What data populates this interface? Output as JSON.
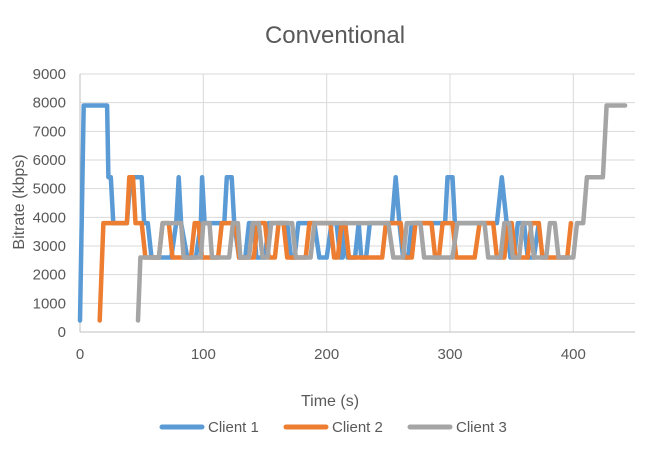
{
  "chart_data": {
    "type": "line",
    "title": "Conventional",
    "xlabel": "Time (s)",
    "ylabel": "Bitrate (kbps)",
    "xlim": [
      0,
      450
    ],
    "ylim": [
      0,
      9000
    ],
    "x_ticks": [
      0,
      100,
      200,
      300,
      400
    ],
    "y_ticks": [
      0,
      1000,
      2000,
      3000,
      4000,
      5000,
      6000,
      7000,
      8000,
      9000
    ],
    "grid": true,
    "legend_position": "bottom",
    "series": [
      {
        "name": "Client 1",
        "color": "#5B9BD5",
        "points": [
          [
            0,
            400
          ],
          [
            3,
            7900
          ],
          [
            22,
            7900
          ],
          [
            23,
            5400
          ],
          [
            25,
            5400
          ],
          [
            27,
            3800
          ],
          [
            38,
            3800
          ],
          [
            41,
            5400
          ],
          [
            50,
            5400
          ],
          [
            52,
            3800
          ],
          [
            55,
            3800
          ],
          [
            58,
            2600
          ],
          [
            74,
            2600
          ],
          [
            78,
            3800
          ],
          [
            80,
            5400
          ],
          [
            82,
            3800
          ],
          [
            87,
            2600
          ],
          [
            94,
            2600
          ],
          [
            98,
            3800
          ],
          [
            99,
            5400
          ],
          [
            101,
            3800
          ],
          [
            117,
            3800
          ],
          [
            119,
            5400
          ],
          [
            123,
            5400
          ],
          [
            125,
            3800
          ],
          [
            129,
            2600
          ],
          [
            134,
            2600
          ],
          [
            137,
            3800
          ],
          [
            141,
            3800
          ],
          [
            143,
            2600
          ],
          [
            150,
            2600
          ],
          [
            153,
            3800
          ],
          [
            168,
            3800
          ],
          [
            171,
            2600
          ],
          [
            174,
            2600
          ],
          [
            177,
            3800
          ],
          [
            190,
            3800
          ],
          [
            194,
            2600
          ],
          [
            200,
            2600
          ],
          [
            204,
            3800
          ],
          [
            208,
            3800
          ],
          [
            211,
            2600
          ],
          [
            213,
            2600
          ],
          [
            215,
            3800
          ],
          [
            217,
            2600
          ],
          [
            223,
            2600
          ],
          [
            226,
            3800
          ],
          [
            228,
            2600
          ],
          [
            232,
            2600
          ],
          [
            235,
            3800
          ],
          [
            253,
            3800
          ],
          [
            256,
            5400
          ],
          [
            259,
            3800
          ],
          [
            262,
            2600
          ],
          [
            266,
            2600
          ],
          [
            269,
            3800
          ],
          [
            296,
            3800
          ],
          [
            298,
            5400
          ],
          [
            302,
            5400
          ],
          [
            304,
            3800
          ],
          [
            338,
            3800
          ],
          [
            342,
            5400
          ],
          [
            346,
            3800
          ],
          [
            349,
            2600
          ],
          [
            352,
            2600
          ],
          [
            355,
            3800
          ],
          [
            360,
            3800
          ],
          [
            363,
            2600
          ],
          [
            368,
            2600
          ],
          [
            372,
            3800
          ]
        ]
      },
      {
        "name": "Client 2",
        "color": "#ED7D31",
        "points": [
          [
            16,
            400
          ],
          [
            19,
            3800
          ],
          [
            38,
            3800
          ],
          [
            40,
            5400
          ],
          [
            43,
            5400
          ],
          [
            45,
            3800
          ],
          [
            50,
            3800
          ],
          [
            53,
            2600
          ],
          [
            64,
            2600
          ],
          [
            67,
            3800
          ],
          [
            72,
            3800
          ],
          [
            75,
            2600
          ],
          [
            90,
            2600
          ],
          [
            93,
            3800
          ],
          [
            96,
            3800
          ],
          [
            99,
            2600
          ],
          [
            112,
            2600
          ],
          [
            115,
            3800
          ],
          [
            126,
            3800
          ],
          [
            129,
            2600
          ],
          [
            141,
            2600
          ],
          [
            144,
            3800
          ],
          [
            150,
            3800
          ],
          [
            153,
            2600
          ],
          [
            158,
            2600
          ],
          [
            161,
            3800
          ],
          [
            165,
            3800
          ],
          [
            168,
            2600
          ],
          [
            183,
            2600
          ],
          [
            186,
            3800
          ],
          [
            203,
            3800
          ],
          [
            206,
            2600
          ],
          [
            209,
            2600
          ],
          [
            212,
            3800
          ],
          [
            215,
            3800
          ],
          [
            218,
            2600
          ],
          [
            245,
            2600
          ],
          [
            248,
            3800
          ],
          [
            260,
            3800
          ],
          [
            263,
            2600
          ],
          [
            269,
            2600
          ],
          [
            272,
            3800
          ],
          [
            285,
            3800
          ],
          [
            288,
            2600
          ],
          [
            291,
            2600
          ],
          [
            294,
            3800
          ],
          [
            302,
            3800
          ],
          [
            305,
            2600
          ],
          [
            320,
            2600
          ],
          [
            324,
            3800
          ],
          [
            335,
            3800
          ],
          [
            338,
            2600
          ],
          [
            344,
            2600
          ],
          [
            347,
            3800
          ],
          [
            350,
            3800
          ],
          [
            353,
            2600
          ],
          [
            363,
            2600
          ],
          [
            366,
            3800
          ],
          [
            372,
            3800
          ],
          [
            375,
            2600
          ],
          [
            395,
            2600
          ],
          [
            398,
            3800
          ]
        ]
      },
      {
        "name": "Client 3",
        "color": "#A5A5A5",
        "points": [
          [
            47,
            400
          ],
          [
            49,
            2600
          ],
          [
            64,
            2600
          ],
          [
            67,
            3800
          ],
          [
            82,
            3800
          ],
          [
            84,
            2600
          ],
          [
            98,
            2600
          ],
          [
            100,
            3800
          ],
          [
            105,
            3800
          ],
          [
            107,
            2600
          ],
          [
            121,
            2600
          ],
          [
            124,
            3800
          ],
          [
            128,
            3800
          ],
          [
            130,
            2600
          ],
          [
            137,
            2600
          ],
          [
            140,
            3800
          ],
          [
            145,
            3800
          ],
          [
            148,
            2600
          ],
          [
            152,
            2600
          ],
          [
            155,
            3800
          ],
          [
            172,
            3800
          ],
          [
            175,
            2600
          ],
          [
            187,
            2600
          ],
          [
            190,
            3800
          ],
          [
            250,
            3800
          ],
          [
            254,
            2600
          ],
          [
            262,
            2600
          ],
          [
            265,
            3800
          ],
          [
            276,
            3800
          ],
          [
            279,
            2600
          ],
          [
            302,
            2600
          ],
          [
            306,
            3800
          ],
          [
            328,
            3800
          ],
          [
            331,
            2600
          ],
          [
            341,
            2600
          ],
          [
            344,
            3800
          ],
          [
            348,
            3800
          ],
          [
            351,
            2600
          ],
          [
            356,
            2600
          ],
          [
            359,
            3800
          ],
          [
            365,
            3800
          ],
          [
            368,
            2600
          ],
          [
            378,
            2600
          ],
          [
            381,
            3800
          ],
          [
            385,
            3800
          ],
          [
            388,
            2600
          ],
          [
            400,
            2600
          ],
          [
            403,
            3800
          ],
          [
            408,
            3800
          ],
          [
            411,
            5400
          ],
          [
            424,
            5400
          ],
          [
            427,
            7900
          ],
          [
            442,
            7900
          ]
        ]
      }
    ]
  }
}
